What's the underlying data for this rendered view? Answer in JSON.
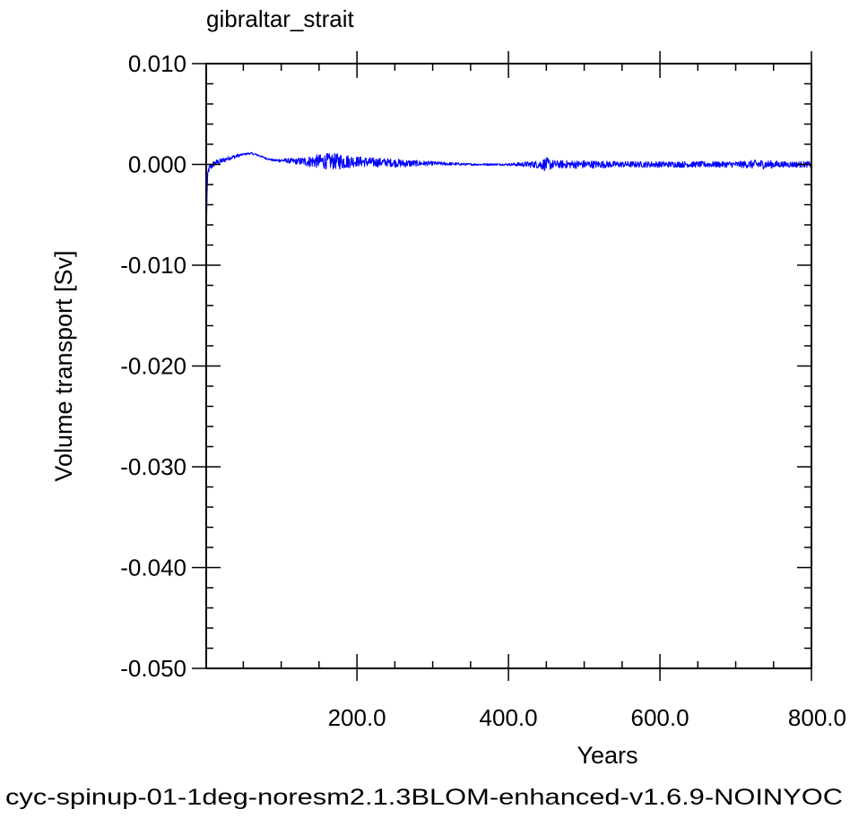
{
  "chart_data": {
    "type": "line",
    "title": "gibraltar_strait",
    "xlabel": "Years",
    "ylabel": "Volume transport [Sv]",
    "caption": "cyc-spinup-01-1deg-noresm2.1.3BLOM-enhanced-v1.6.9-NOINYOC",
    "xlim": [
      1,
      800
    ],
    "ylim": [
      -0.05,
      0.01
    ],
    "x_ticks": [
      200,
      400,
      600,
      800
    ],
    "x_tick_labels": [
      "200.0",
      "400.0",
      "600.0",
      "800.0"
    ],
    "y_ticks": [
      0.01,
      0.0,
      -0.01,
      -0.02,
      -0.03,
      -0.04,
      -0.05
    ],
    "y_tick_labels": [
      "0.010",
      "0.000",
      "-0.010",
      "-0.020",
      "-0.030",
      "-0.040",
      "-0.050"
    ],
    "grid": false,
    "legend": "none",
    "line_color": "#0000ff",
    "caption_color": "#0000ff",
    "series": [
      {
        "values": {
          "x": [
            1,
            2,
            3,
            4,
            5,
            6,
            8,
            10,
            15,
            20,
            30,
            40,
            50,
            60,
            70,
            80,
            90,
            100,
            120,
            140,
            160,
            180,
            200,
            220,
            240,
            260,
            280,
            300,
            350,
            400,
            440,
            450,
            460,
            500,
            550,
            600,
            650,
            700,
            720,
            730,
            760,
            800
          ],
          "y": [
            -0.0085,
            -0.003,
            -0.0012,
            -0.0006,
            -0.0004,
            -0.0003,
            -0.0002,
            0.0,
            0.0002,
            0.0003,
            0.0006,
            0.0008,
            0.001,
            0.0011,
            0.0009,
            0.0006,
            0.0004,
            0.0004,
            0.0003,
            0.0003,
            0.0003,
            0.0003,
            0.0003,
            0.0002,
            0.0002,
            0.0001,
            0.0001,
            0.0001,
            0.0,
            0.0,
            0.0,
            0.0,
            0.0,
            0.0,
            0.0,
            0.0,
            0.0,
            0.0,
            0.0,
            0.0,
            0.0,
            0.0
          ],
          "noise_amplitude": [
            0.0005,
            0.0005,
            0.0004,
            0.0004,
            0.0003,
            0.0003,
            0.0003,
            0.0003,
            0.0003,
            0.0003,
            0.0002,
            0.0002,
            0.0001,
            0.0001,
            0.0001,
            0.0001,
            0.0001,
            0.0002,
            0.0003,
            0.0006,
            0.0008,
            0.0008,
            0.0005,
            0.0005,
            0.0004,
            0.0004,
            0.0003,
            0.0002,
            0.0001,
            0.0001,
            0.0004,
            0.0007,
            0.0004,
            0.0004,
            0.0003,
            0.0003,
            0.0003,
            0.0003,
            0.0004,
            0.0005,
            0.0003,
            0.0003
          ]
        }
      }
    ]
  }
}
